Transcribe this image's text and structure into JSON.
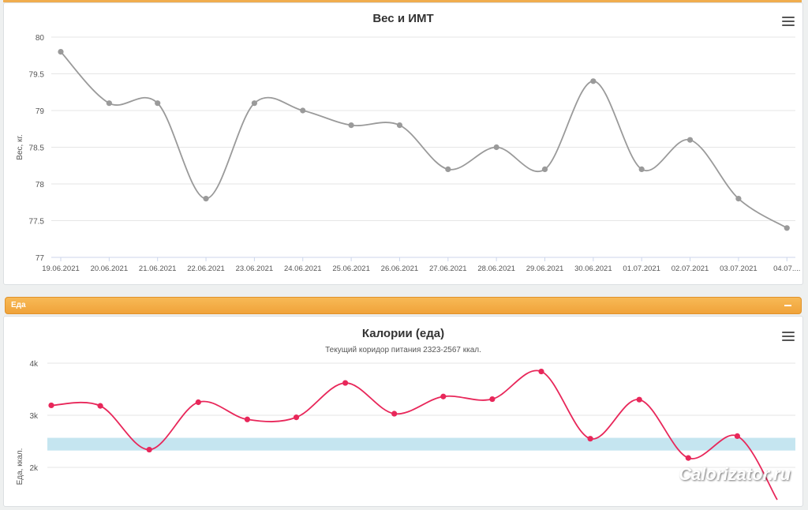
{
  "chart_data": [
    {
      "type": "line",
      "title": "Вес и ИМТ",
      "ylabel": "Вес, кг.",
      "xlabel": "",
      "ylim": [
        77,
        80
      ],
      "yticks": [
        80,
        79.5,
        79,
        78.5,
        78,
        77.5,
        77
      ],
      "categories": [
        "19.06.2021",
        "20.06.2021",
        "21.06.2021",
        "22.06.2021",
        "23.06.2021",
        "24.06.2021",
        "25.06.2021",
        "26.06.2021",
        "27.06.2021",
        "28.06.2021",
        "29.06.2021",
        "30.06.2021",
        "01.07.2021",
        "02.07.2021",
        "03.07.2021",
        "04.07...."
      ],
      "series": [
        {
          "color": "#9a9a9a",
          "values": [
            79.8,
            79.1,
            79.1,
            77.8,
            79.1,
            79.0,
            78.8,
            78.8,
            78.2,
            78.5,
            78.2,
            79.4,
            78.2,
            78.6,
            77.8,
            77.4
          ]
        }
      ],
      "grid": true
    },
    {
      "type": "line",
      "title": "Калории (еда)",
      "subtitle": "Текущий коридор питания 2323-2567 ккал.",
      "ylabel": "Еда, ккал.",
      "yticks": [
        "4k",
        "3k",
        "2k"
      ],
      "ylim": [
        1400,
        4200
      ],
      "band": [
        2323,
        2567
      ],
      "band_color": "#c5e5f0",
      "series": [
        {
          "color": "#e8275a",
          "values": [
            3190,
            3180,
            2340,
            3250,
            2920,
            2960,
            3620,
            3030,
            3360,
            3310,
            3840,
            2550,
            3300,
            2180,
            2600
          ]
        }
      ],
      "grid": true
    }
  ],
  "section": {
    "label": "Еда",
    "collapse_icon": "minus-icon"
  },
  "menu_icon": "hamburger-menu-icon",
  "watermark": "Calorizator.ru"
}
